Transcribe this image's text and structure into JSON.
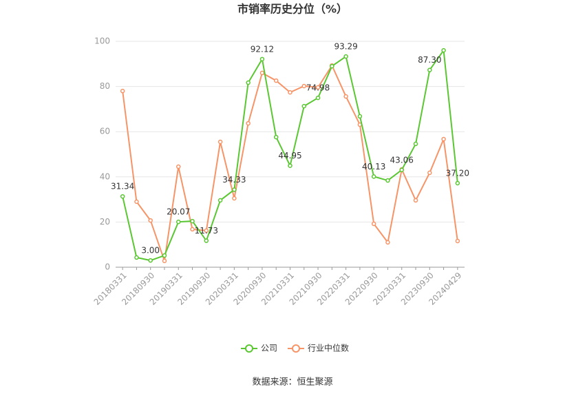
{
  "chart_data": {
    "type": "line",
    "title": "市销率历史分位（%）",
    "categories": [
      "20180331",
      null,
      "20180930",
      null,
      "20190331",
      null,
      "20190930",
      null,
      "20200331",
      null,
      "20200930",
      null,
      "20210331",
      null,
      "20210930",
      null,
      "20220331",
      null,
      "20220930",
      null,
      "20230331",
      null,
      "20230930",
      null,
      "20240429"
    ],
    "series": [
      {
        "name": "公司",
        "color": "#5ac732",
        "values": [
          31.34,
          4.3,
          3.0,
          5.2,
          20.07,
          20.4,
          11.73,
          29.6,
          34.33,
          81.7,
          92.12,
          57.6,
          44.95,
          71.3,
          74.98,
          89.0,
          93.29,
          66.8,
          40.13,
          38.4,
          43.06,
          54.6,
          87.3,
          96.0,
          37.2
        ],
        "value_labels": [
          "31.34",
          null,
          "3.00",
          null,
          "20.07",
          null,
          "11.73",
          null,
          "34.33",
          null,
          "92.12",
          null,
          "44.95",
          null,
          "74.98",
          null,
          "93.29",
          null,
          "40.13",
          null,
          "43.06",
          null,
          "87.30",
          null,
          "37.20"
        ]
      },
      {
        "name": "行业中位数",
        "color": "#f79467",
        "values": [
          78.0,
          29.0,
          20.7,
          2.8,
          44.5,
          16.8,
          16.2,
          55.5,
          30.5,
          63.7,
          86.0,
          82.6,
          77.4,
          80.2,
          79.6,
          89.3,
          75.6,
          63.1,
          19.2,
          11.0,
          43.3,
          29.6,
          41.8,
          56.7,
          11.6
        ]
      }
    ],
    "ylim": [
      0,
      100
    ],
    "yticks": [
      0,
      20,
      40,
      60,
      80,
      100
    ],
    "grid": true,
    "source": "数据来源：恒生聚源"
  }
}
